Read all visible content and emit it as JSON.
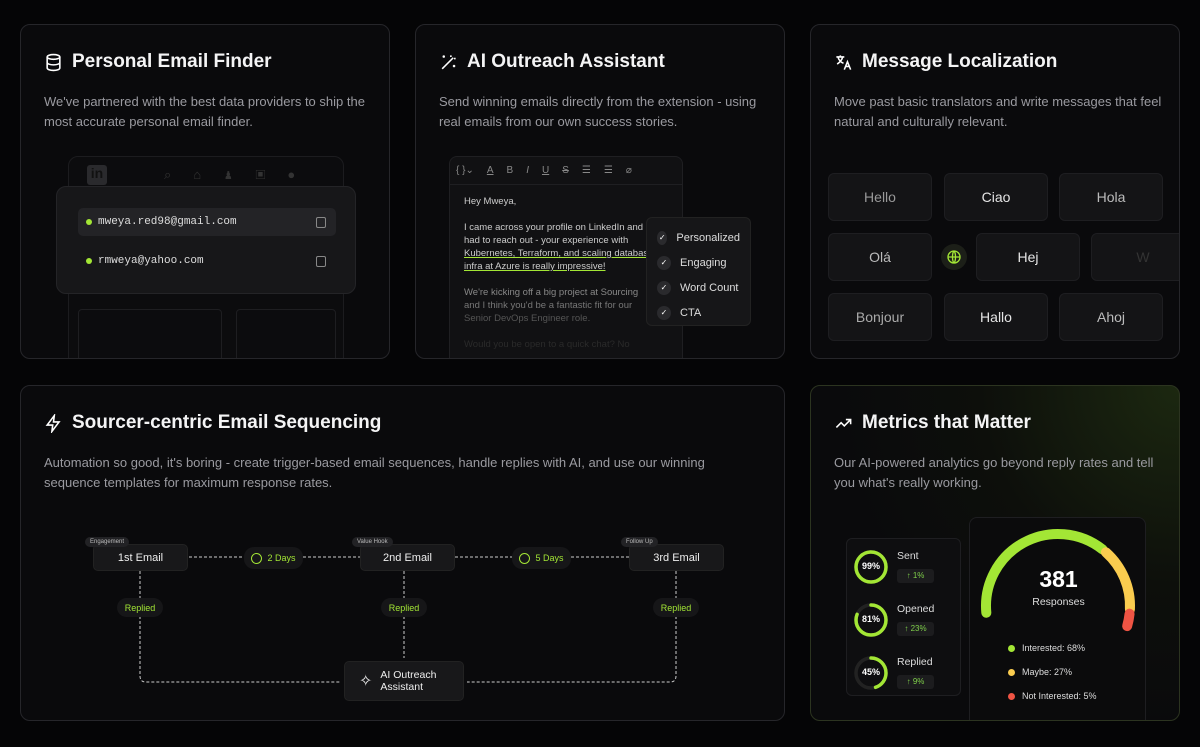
{
  "cards": {
    "email_finder": {
      "title": "Personal Email Finder",
      "icon": "database-icon",
      "desc": "We've partnered with the best data providers to ship the most accurate personal email finder.",
      "emails": [
        "mweya.red98@gmail.com",
        "rmweya@yahoo.com"
      ],
      "linkedin_logo": "in"
    },
    "outreach": {
      "title": "AI Outreach Assistant",
      "icon": "magic-wand-icon",
      "desc": "Send winning emails directly from the extension - using real emails from our own success stories.",
      "email_lines": [
        "Hey Mweya,",
        "I came across your profile on LinkedIn and",
        "had to reach out - your experience with",
        "Kubernetes, Terraform, and scaling database",
        "infra at Azure is really impressive!",
        "We're kicking off a big project at Sourcing",
        "and I think you'd be a fantastic fit for our",
        "Senior DevOps Engineer role.",
        "Would you be open to a quick chat? No"
      ],
      "checks": [
        "Personalized",
        "Engaging",
        "Word Count",
        "CTA"
      ]
    },
    "localization": {
      "title": "Message Localization",
      "icon": "translate-icon",
      "desc": "Move past basic translators and write messages that feel natural and culturally relevant.",
      "words": [
        "Hello",
        "Ciao",
        "Hola",
        "Olá",
        "Hej",
        "W",
        "Bonjour",
        "Hallo",
        "Ahoj"
      ]
    },
    "sequencing": {
      "title": "Sourcer-centric Email Sequencing",
      "icon": "lightning-icon",
      "desc": "Automation so good, it's boring - create trigger-based email sequences, handle replies with AI, and use our winning sequence templates for maximum response rates.",
      "steps": [
        {
          "tag": "Engagement",
          "label": "1st Email"
        },
        {
          "tag": "Value Hook",
          "label": "2nd Email"
        },
        {
          "tag": "Follow Up",
          "label": "3rd Email"
        }
      ],
      "delays": [
        "2 Days",
        "5 Days"
      ],
      "replied": "Replied",
      "target_line1": "AI Outreach",
      "target_line2": "Assistant"
    },
    "metrics": {
      "title": "Metrics that Matter",
      "icon": "trending-up-icon",
      "desc": "Our AI-powered analytics go beyond reply rates and tell you what's really working.",
      "stats": [
        {
          "label": "Sent",
          "pct": 99,
          "value": "99%",
          "change": "↑ 1%"
        },
        {
          "label": "Opened",
          "pct": 81,
          "value": "81%",
          "change": "↑ 23%"
        },
        {
          "label": "Replied",
          "pct": 45,
          "value": "45%",
          "change": "↑ 9%"
        }
      ],
      "total": "381",
      "total_label": "Responses",
      "breakdown": [
        {
          "label": "Interested: 68%",
          "pct": 68,
          "color": "#a3e635"
        },
        {
          "label": "Maybe: 27%",
          "pct": 27,
          "color": "#facc4f"
        },
        {
          "label": "Not Interested: 5%",
          "pct": 5,
          "color": "#ef5444"
        }
      ]
    }
  },
  "colors": {
    "accent": "#a3e635",
    "background": "#050506",
    "card": "#0a0a0c"
  }
}
